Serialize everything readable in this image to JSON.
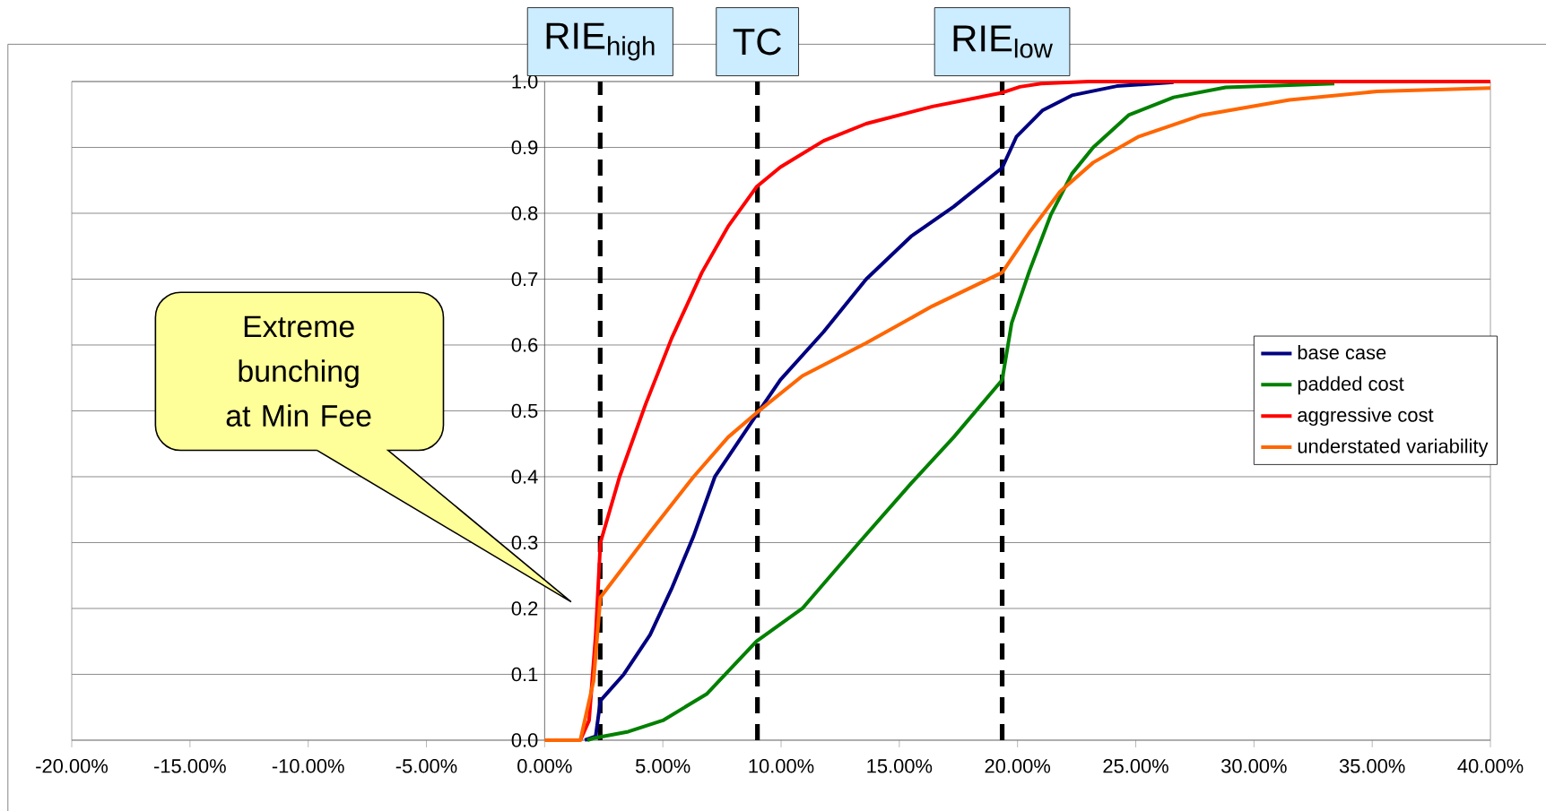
{
  "chart_data": {
    "type": "line",
    "series": [
      {
        "name": "base case",
        "color": "#000080",
        "x": [
          1.7,
          2.16,
          2.36,
          3.35,
          4.46,
          5.37,
          6.3,
          7.2,
          8.96,
          9.97,
          11.8,
          13.6,
          15.5,
          17.3,
          19.35,
          19.95,
          21.05,
          22.3,
          24.2,
          26.6
        ],
        "values": [
          0,
          0.006,
          0.06,
          0.1,
          0.16,
          0.23,
          0.31,
          0.4,
          0.494,
          0.547,
          0.62,
          0.7,
          0.765,
          0.81,
          0.869,
          0.916,
          0.956,
          0.979,
          0.993,
          0.999
        ]
      },
      {
        "name": "padded cost",
        "color": "#008000",
        "x": [
          1.8,
          2.07,
          3.54,
          5.0,
          6.85,
          8.96,
          10.9,
          13.3,
          15.5,
          17.3,
          19.35,
          19.75,
          20.5,
          21.4,
          22.3,
          23.2,
          24.7,
          26.6,
          28.8,
          33.4
        ],
        "values": [
          0,
          0.003,
          0.013,
          0.03,
          0.07,
          0.15,
          0.2,
          0.3,
          0.39,
          0.46,
          0.547,
          0.633,
          0.712,
          0.797,
          0.86,
          0.9,
          0.949,
          0.976,
          0.991,
          0.997
        ]
      },
      {
        "name": "aggressive cost",
        "color": "#ff0000",
        "x": [
          1.51,
          1.88,
          2.16,
          2.36,
          3.17,
          4.27,
          5.37,
          6.65,
          7.76,
          8.96,
          9.97,
          11.8,
          13.6,
          16.4,
          19.35,
          20.1,
          21.0,
          23.0,
          40.0
        ],
        "values": [
          0,
          0.03,
          0.16,
          0.3,
          0.4,
          0.51,
          0.61,
          0.71,
          0.78,
          0.84,
          0.87,
          0.91,
          0.936,
          0.962,
          0.983,
          0.992,
          0.997,
          1.0,
          1.0
        ]
      },
      {
        "name": "understated variability",
        "color": "#ff6600",
        "x": [
          0,
          1.51,
          2.07,
          2.36,
          4.46,
          6.3,
          7.76,
          8.96,
          10.9,
          13.6,
          16.4,
          19.35,
          20.5,
          21.8,
          23.2,
          25.1,
          27.8,
          31.5,
          35.2,
          40.0
        ],
        "values": [
          0,
          0,
          0.09,
          0.217,
          0.316,
          0.4,
          0.46,
          0.497,
          0.553,
          0.603,
          0.659,
          0.71,
          0.771,
          0.833,
          0.877,
          0.916,
          0.949,
          0.972,
          0.985,
          0.99
        ]
      }
    ],
    "xlim": [
      -20,
      40
    ],
    "xticks": [
      {
        "value": -20,
        "label": "-20.00%"
      },
      {
        "value": -15,
        "label": "-15.00%"
      },
      {
        "value": -10,
        "label": "-10.00%"
      },
      {
        "value": -5,
        "label": "-5.00%"
      },
      {
        "value": 0,
        "label": "0.00%"
      },
      {
        "value": 5,
        "label": "5.00%"
      },
      {
        "value": 10,
        "label": "10.00%"
      },
      {
        "value": 15,
        "label": "15.00%"
      },
      {
        "value": 20,
        "label": "20.00%"
      },
      {
        "value": 25,
        "label": "25.00%"
      },
      {
        "value": 30,
        "label": "30.00%"
      },
      {
        "value": 35,
        "label": "35.00%"
      },
      {
        "value": 40,
        "label": "40.00%"
      }
    ],
    "ylim": [
      0,
      1
    ],
    "yticks": [
      {
        "value": 0,
        "label": "0.0"
      },
      {
        "value": 0.1,
        "label": "0.1"
      },
      {
        "value": 0.2,
        "label": "0.2"
      },
      {
        "value": 0.3,
        "label": "0.3"
      },
      {
        "value": 0.4,
        "label": "0.4"
      },
      {
        "value": 0.5,
        "label": "0.5"
      },
      {
        "value": 0.6,
        "label": "0.6"
      },
      {
        "value": 0.7,
        "label": "0.7"
      },
      {
        "value": 0.8,
        "label": "0.8"
      },
      {
        "value": 0.9,
        "label": "0.9"
      },
      {
        "value": 1,
        "label": "1.0"
      }
    ],
    "ref_lines": [
      {
        "axis": "x",
        "value": 2.35,
        "label": "RIE$_{high}$",
        "color": "#000000",
        "line_style": "dashed"
      },
      {
        "axis": "x",
        "value": 9,
        "label": "TC",
        "color": "#000000",
        "line_style": "dashed"
      },
      {
        "axis": "x",
        "value": 19.35,
        "label": "RIE$_{low}$",
        "color": "#000000",
        "line_style": "dashed"
      }
    ],
    "annotations": [
      "Extreme bunching at Min Fee"
    ],
    "grid": "y",
    "legend": "right",
    "marker": "none",
    "line_style": "solid"
  }
}
